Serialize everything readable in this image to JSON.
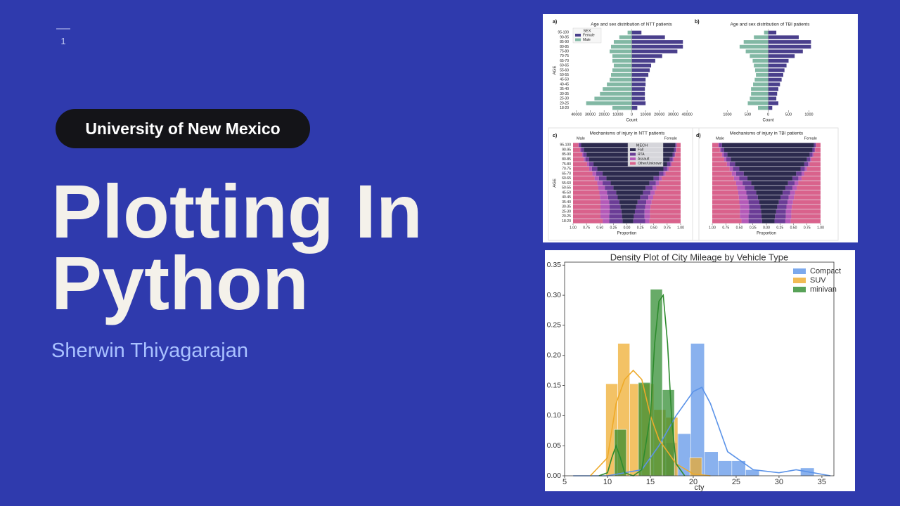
{
  "slide": {
    "page_number": "1",
    "badge": "University of New Mexico",
    "title_lines": [
      "Plotting In",
      "Python"
    ],
    "author": "Sherwin Thiyagarajan"
  },
  "chart_data": [
    {
      "type": "pyramid",
      "panel": "a)",
      "title": "Age and sex distribution of NTT patients",
      "xlabel": "Count",
      "ylabel": "AGE",
      "categories": [
        "95-100",
        "90-95",
        "85-90",
        "80-85",
        "75-80",
        "70-75",
        "65-70",
        "60-65",
        "55-60",
        "50-55",
        "45-50",
        "40-45",
        "35-40",
        "30-35",
        "25-30",
        "20-25",
        "18-20"
      ],
      "legend_title": "SEX",
      "legend": "upper left",
      "series": [
        {
          "name": "Female",
          "color": "#4a3f8c",
          "side": "right",
          "values": [
            7000,
            24000,
            37000,
            37000,
            33000,
            22000,
            17000,
            14000,
            13000,
            12000,
            10000,
            10000,
            9500,
            9500,
            9500,
            10000,
            4000
          ]
        },
        {
          "name": "Male",
          "color": "#82b8a4",
          "side": "left",
          "values": [
            3000,
            9000,
            13000,
            15000,
            16000,
            14000,
            14000,
            13000,
            14000,
            15000,
            16000,
            18000,
            21000,
            23000,
            27000,
            33000,
            14000
          ]
        }
      ],
      "xlim": [
        -44000,
        44000
      ],
      "xticks": [
        {
          "value": -40000,
          "label": "40000"
        },
        {
          "value": -30000,
          "label": "30000"
        },
        {
          "value": -20000,
          "label": "20000"
        },
        {
          "value": -10000,
          "label": "10000"
        },
        0,
        10000,
        20000,
        30000,
        40000
      ]
    },
    {
      "type": "pyramid",
      "panel": "b)",
      "title": "Age and sex distribution of TBI patients",
      "xlabel": "Count",
      "series": [
        {
          "name": "Female",
          "color": "#4a3f8c",
          "side": "right",
          "values": [
            200,
            750,
            1050,
            1050,
            850,
            650,
            500,
            450,
            400,
            370,
            330,
            290,
            250,
            220,
            200,
            250,
            100
          ]
        },
        {
          "name": "Male",
          "color": "#82b8a4",
          "side": "left",
          "values": [
            100,
            350,
            600,
            700,
            550,
            450,
            380,
            350,
            320,
            300,
            330,
            370,
            420,
            420,
            450,
            500,
            250
          ]
        }
      ],
      "xlim": [
        -1250,
        1250
      ],
      "xticks": [
        {
          "value": -1000,
          "label": "1000"
        },
        {
          "value": -500,
          "label": "500"
        },
        0,
        500,
        1000
      ]
    },
    {
      "type": "proportion",
      "panel": "c)",
      "title": "Mechanisms of injury in NTT patients",
      "xlabel": "Proportion",
      "ylabel": "AGE",
      "left_label": "Male",
      "right_label": "Female",
      "categories": [
        "95-100",
        "90-95",
        "85-90",
        "80-85",
        "75-80",
        "70-75",
        "65-70",
        "60-65",
        "55-60",
        "50-55",
        "45-50",
        "40-45",
        "35-40",
        "30-35",
        "25-30",
        "20-25",
        "18-20"
      ],
      "legend_title": "MECH",
      "legend": "upper center",
      "series": [
        {
          "name": "Fall",
          "color": "#2c2a4e",
          "male": [
            0.85,
            0.8,
            0.75,
            0.7,
            0.62,
            0.55,
            0.45,
            0.38,
            0.3,
            0.25,
            0.2,
            0.17,
            0.14,
            0.12,
            0.1,
            0.09,
            0.08
          ],
          "female": [
            0.9,
            0.88,
            0.85,
            0.8,
            0.75,
            0.68,
            0.6,
            0.5,
            0.42,
            0.35,
            0.3,
            0.25,
            0.2,
            0.17,
            0.15,
            0.13,
            0.12
          ]
        },
        {
          "name": "RTA",
          "color": "#6b3d96",
          "male": [
            0.04,
            0.05,
            0.06,
            0.07,
            0.08,
            0.1,
            0.12,
            0.14,
            0.15,
            0.16,
            0.17,
            0.18,
            0.19,
            0.2,
            0.22,
            0.24,
            0.25
          ],
          "female": [
            0.02,
            0.03,
            0.04,
            0.05,
            0.06,
            0.07,
            0.08,
            0.1,
            0.12,
            0.13,
            0.14,
            0.15,
            0.16,
            0.17,
            0.18,
            0.2,
            0.22
          ]
        },
        {
          "name": "Assault",
          "color": "#b45ab8",
          "male": [
            0.01,
            0.02,
            0.02,
            0.03,
            0.04,
            0.05,
            0.07,
            0.08,
            0.1,
            0.12,
            0.14,
            0.15,
            0.16,
            0.17,
            0.17,
            0.16,
            0.12
          ],
          "female": [
            0.01,
            0.01,
            0.01,
            0.02,
            0.02,
            0.03,
            0.04,
            0.05,
            0.06,
            0.07,
            0.08,
            0.09,
            0.1,
            0.1,
            0.1,
            0.1,
            0.08
          ]
        },
        {
          "name": "Other/Unknown",
          "color": "#d9628c",
          "male": [
            0.1,
            0.13,
            0.17,
            0.2,
            0.26,
            0.3,
            0.36,
            0.4,
            0.45,
            0.47,
            0.49,
            0.5,
            0.51,
            0.51,
            0.51,
            0.51,
            0.55
          ],
          "female": [
            0.07,
            0.08,
            0.1,
            0.13,
            0.17,
            0.22,
            0.28,
            0.35,
            0.4,
            0.45,
            0.48,
            0.51,
            0.54,
            0.56,
            0.57,
            0.57,
            0.58
          ]
        }
      ],
      "xlim": [
        -1,
        1
      ],
      "xticks": [
        {
          "value": -1,
          "label": "1.00"
        },
        {
          "value": -0.75,
          "label": "0.75"
        },
        {
          "value": -0.5,
          "label": "0.50"
        },
        {
          "value": -0.25,
          "label": "0.25"
        },
        {
          "value": 0,
          "label": "0.00"
        },
        {
          "value": 0.25,
          "label": "0.25"
        },
        {
          "value": 0.5,
          "label": "0.50"
        },
        {
          "value": 0.75,
          "label": "0.75"
        },
        {
          "value": 1,
          "label": "1.00"
        }
      ]
    },
    {
      "type": "proportion",
      "panel": "d)",
      "title": "Mechanisms of injury in TBI patients",
      "xlabel": "Proportion",
      "left_label": "Male",
      "right_label": "Female",
      "series": [
        {
          "name": "Fall",
          "color": "#2c2a4e",
          "male": [
            0.82,
            0.78,
            0.72,
            0.66,
            0.58,
            0.5,
            0.42,
            0.35,
            0.28,
            0.23,
            0.19,
            0.16,
            0.13,
            0.11,
            0.1,
            0.09,
            0.08
          ],
          "female": [
            0.88,
            0.85,
            0.8,
            0.75,
            0.7,
            0.63,
            0.55,
            0.48,
            0.4,
            0.35,
            0.3,
            0.26,
            0.23,
            0.2,
            0.18,
            0.16,
            0.15
          ]
        },
        {
          "name": "RTA",
          "color": "#6b3d96",
          "male": [
            0.05,
            0.06,
            0.07,
            0.08,
            0.1,
            0.12,
            0.14,
            0.15,
            0.16,
            0.17,
            0.18,
            0.19,
            0.2,
            0.21,
            0.22,
            0.24,
            0.25
          ],
          "female": [
            0.03,
            0.04,
            0.05,
            0.06,
            0.07,
            0.08,
            0.1,
            0.11,
            0.12,
            0.13,
            0.14,
            0.15,
            0.16,
            0.17,
            0.18,
            0.2,
            0.2
          ]
        },
        {
          "name": "Assault",
          "color": "#b45ab8",
          "male": [
            0.02,
            0.02,
            0.03,
            0.04,
            0.05,
            0.06,
            0.08,
            0.1,
            0.12,
            0.14,
            0.15,
            0.16,
            0.17,
            0.17,
            0.17,
            0.16,
            0.13
          ],
          "female": [
            0.01,
            0.01,
            0.02,
            0.02,
            0.03,
            0.04,
            0.05,
            0.06,
            0.07,
            0.08,
            0.09,
            0.1,
            0.1,
            0.1,
            0.1,
            0.1,
            0.1
          ]
        },
        {
          "name": "Other/Unknown",
          "color": "#d9628c",
          "male": [
            0.11,
            0.14,
            0.18,
            0.22,
            0.27,
            0.32,
            0.36,
            0.4,
            0.44,
            0.46,
            0.48,
            0.49,
            0.5,
            0.51,
            0.51,
            0.51,
            0.54
          ],
          "female": [
            0.08,
            0.1,
            0.13,
            0.17,
            0.2,
            0.25,
            0.3,
            0.35,
            0.41,
            0.44,
            0.47,
            0.49,
            0.51,
            0.53,
            0.54,
            0.54,
            0.55
          ]
        }
      ],
      "xlim": [
        -1,
        1
      ],
      "xticks": [
        {
          "value": -1,
          "label": "1.00"
        },
        {
          "value": -0.75,
          "label": "0.75"
        },
        {
          "value": -0.5,
          "label": "0.50"
        },
        {
          "value": -0.25,
          "label": "0.25"
        },
        {
          "value": 0,
          "label": "0.00"
        },
        {
          "value": 0.25,
          "label": "0.25"
        },
        {
          "value": 0.5,
          "label": "0.50"
        },
        {
          "value": 0.75,
          "label": "0.75"
        },
        {
          "value": 1,
          "label": "1.00"
        }
      ]
    },
    {
      "type": "histogram",
      "title": "Density Plot of City Mileage by Vehicle Type",
      "xlabel": "cty",
      "legend": "upper right",
      "xlim": [
        5,
        36.4
      ],
      "ylim": [
        0,
        0.355
      ],
      "xticks": [
        5,
        10,
        15,
        20,
        25,
        30,
        35
      ],
      "yticks": [
        {
          "value": 0,
          "label": "0.00"
        },
        {
          "value": 0.05,
          "label": "0.05"
        },
        {
          "value": 0.1,
          "label": "0.10"
        },
        {
          "value": 0.15,
          "label": "0.15"
        },
        {
          "value": 0.2,
          "label": "0.20"
        },
        {
          "value": 0.25,
          "label": "0.25"
        },
        {
          "value": 0.3,
          "label": "0.30"
        },
        {
          "value": 0.35,
          "label": "0.35"
        }
      ],
      "series": [
        {
          "name": "Compact",
          "color": "#5b93e8",
          "bins": [
            16.5,
            18.1,
            19.7,
            21.3,
            22.9,
            24.5,
            26.1,
            27.7,
            29.3,
            30.9,
            32.5,
            34.1
          ],
          "values": [
            0.055,
            0.07,
            0.22,
            0.04,
            0.025,
            0.025,
            0.01,
            0,
            0,
            0,
            0.013
          ],
          "kde_x": [
            6,
            10,
            14,
            16,
            18,
            20,
            21,
            22,
            24,
            27,
            30,
            32,
            34,
            36
          ],
          "kde_y": [
            0,
            0,
            0.01,
            0.05,
            0.1,
            0.14,
            0.147,
            0.12,
            0.04,
            0.01,
            0.005,
            0.01,
            0.005,
            0
          ]
        },
        {
          "name": "SUV",
          "color": "#eeaa2a",
          "bins": [
            9.8,
            11.2,
            12.6,
            14.0,
            15.4,
            16.8,
            18.2,
            19.6,
            21.0
          ],
          "values": [
            0.153,
            0.22,
            0.153,
            0.153,
            0.11,
            0.097,
            0,
            0.03
          ],
          "kde_x": [
            8,
            10,
            11,
            12,
            13,
            14,
            15,
            16,
            17,
            18,
            20,
            22
          ],
          "kde_y": [
            0,
            0.03,
            0.12,
            0.16,
            0.175,
            0.16,
            0.1,
            0.06,
            0.04,
            0.02,
            0.003,
            0
          ]
        },
        {
          "name": "minivan",
          "color": "#2e8b2e",
          "bins": [
            10.8,
            12.2,
            13.6,
            15.0,
            16.4,
            17.8
          ],
          "values": [
            0.077,
            0,
            0.155,
            0.31,
            0.143
          ],
          "kde_x": [
            9,
            10,
            10.5,
            11,
            11.5,
            12,
            13,
            14,
            15,
            15.5,
            16,
            16.5,
            17,
            17.5,
            18,
            19
          ],
          "kde_y": [
            0,
            0.005,
            0.03,
            0.05,
            0.03,
            0.005,
            0,
            0.01,
            0.1,
            0.22,
            0.29,
            0.3,
            0.22,
            0.09,
            0.02,
            0
          ]
        }
      ]
    }
  ]
}
